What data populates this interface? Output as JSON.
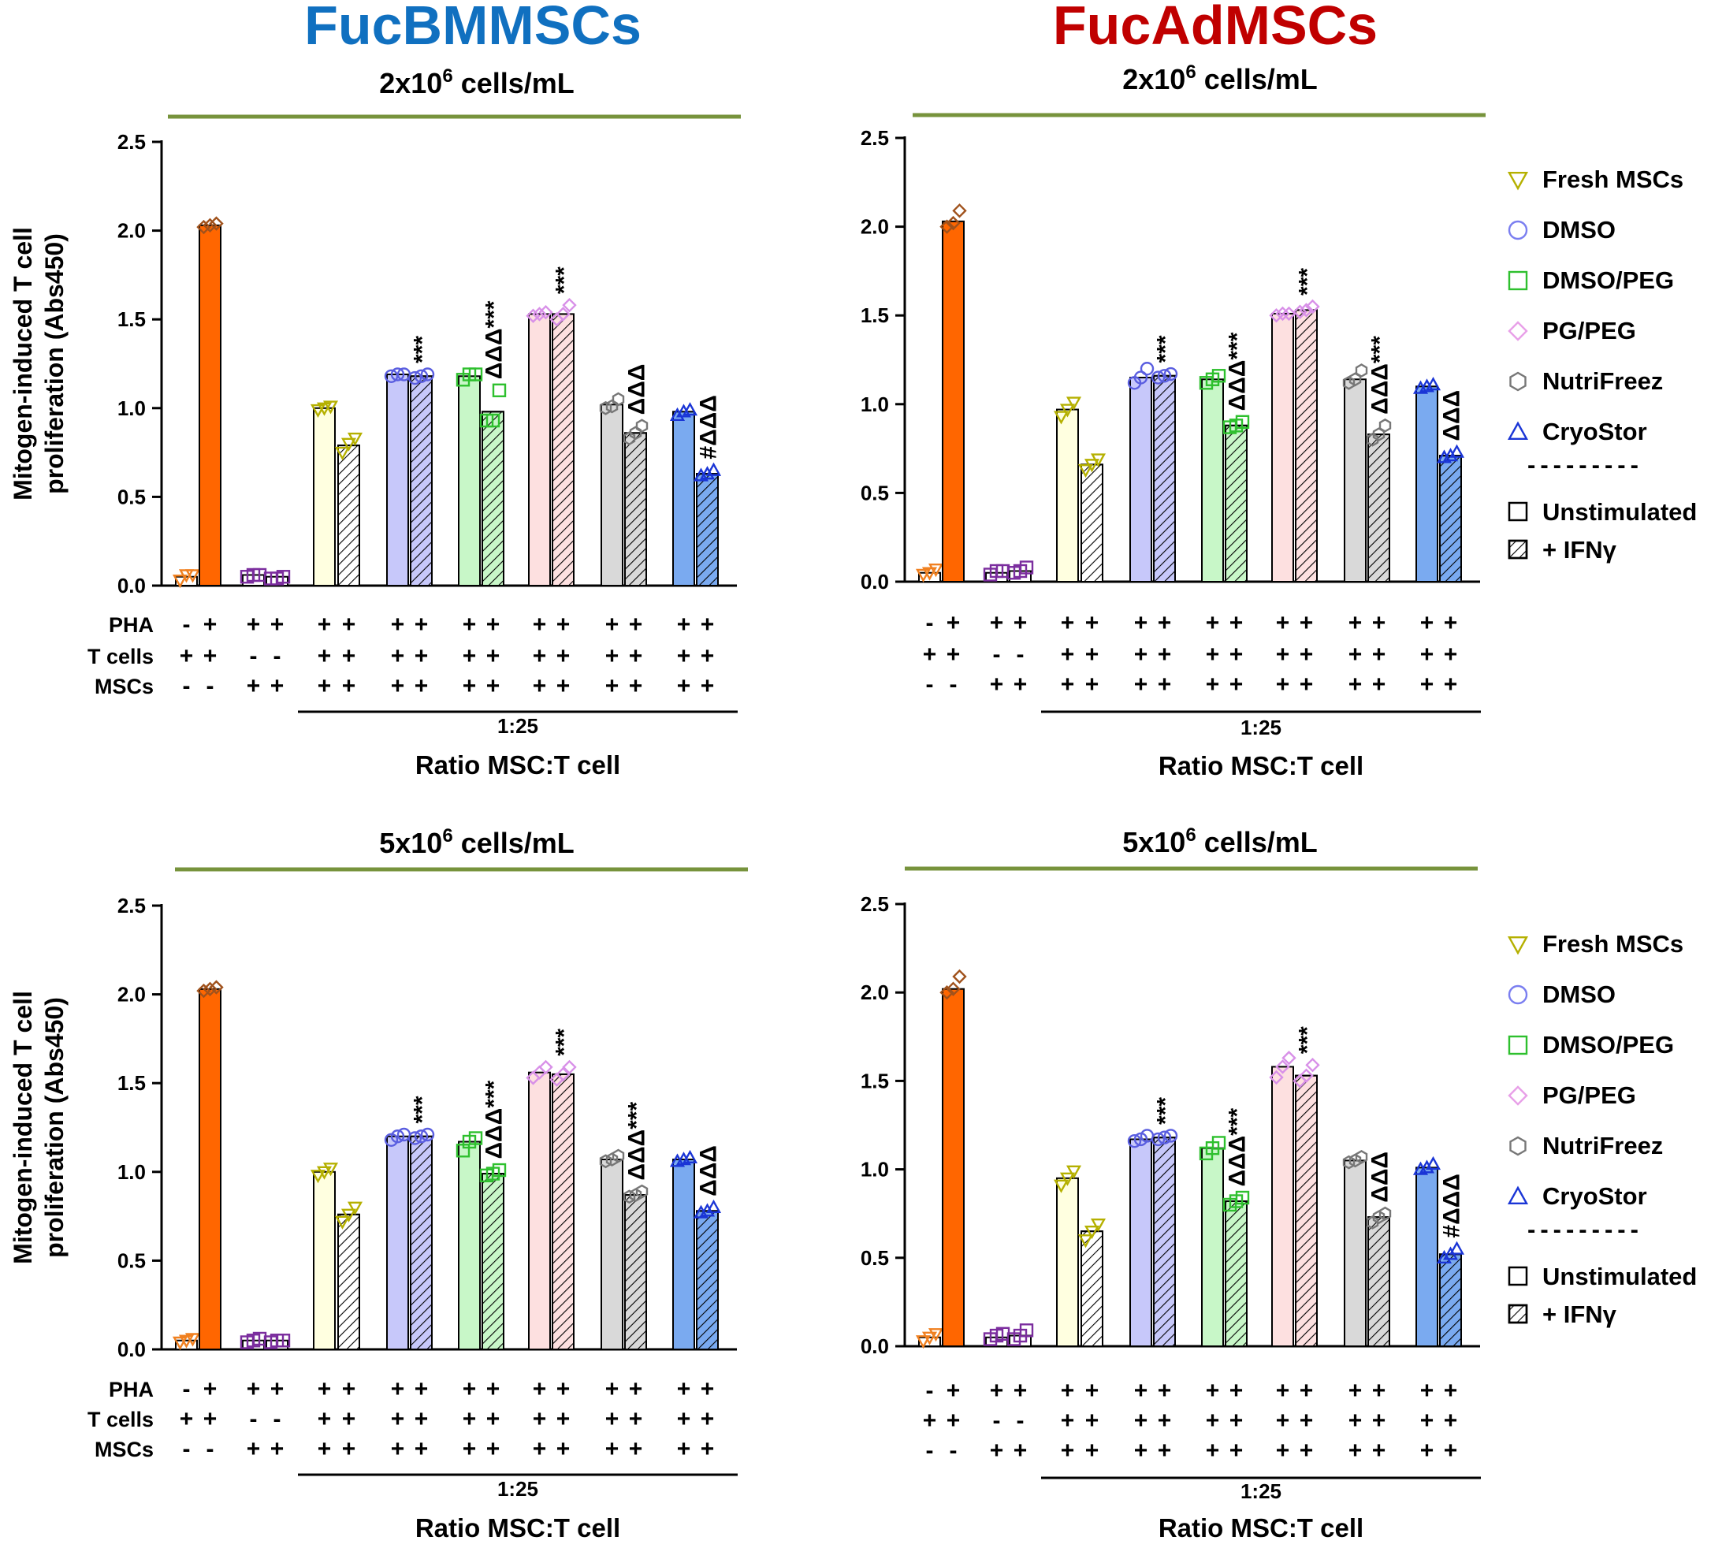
{
  "chart_data": {
    "type": "bar",
    "column_titles": [
      {
        "text": "FucBMMSCs",
        "color": "#1070c0"
      },
      {
        "text": "FucAdMSCs",
        "color": "#c00000"
      }
    ],
    "ylabel_line1": "Mitogen-induced T cell",
    "ylabel_line2": "proliferation (Abs450)",
    "ylim": [
      0,
      2.5
    ],
    "yticks": [
      "0.0",
      "0.5",
      "1.0",
      "1.5",
      "2.0",
      "2.5"
    ],
    "ytick_values": [
      0,
      0.5,
      1.0,
      1.5,
      2.0,
      2.5
    ],
    "row_labels": [
      "PHA",
      "T cells",
      "MSCs"
    ],
    "conditions": {
      "PHA": [
        "-",
        "+",
        "+",
        "+",
        "+",
        "+",
        "+",
        "+",
        "+",
        "+",
        "+",
        "+",
        "+",
        "+",
        "+",
        "+"
      ],
      "T cells": [
        "+",
        "+",
        "-",
        "-",
        "+",
        "+",
        "+",
        "+",
        "+",
        "+",
        "+",
        "+",
        "+",
        "+",
        "+",
        "+"
      ],
      "MSCs": [
        "-",
        "-",
        "+",
        "+",
        "+",
        "+",
        "+",
        "+",
        "+",
        "+",
        "+",
        "+",
        "+",
        "+",
        "+",
        "+"
      ]
    },
    "ratio_label": "1:25",
    "xlabel": "Ratio MSC:T cell",
    "legend": {
      "groups": [
        {
          "label": "Fresh MSCs",
          "marker": "triangle-down",
          "color": "#b5b000"
        },
        {
          "label": "DMSO",
          "marker": "circle",
          "color": "#7a7ef0"
        },
        {
          "label": "DMSO/PEG",
          "marker": "square",
          "color": "#2ec02e"
        },
        {
          "label": "PG/PEG",
          "marker": "diamond",
          "color": "#e8a0e8"
        },
        {
          "label": "NutriFreez",
          "marker": "hexagon",
          "color": "#777777"
        },
        {
          "label": "CryoStor",
          "marker": "triangle-up",
          "color": "#1a35d6"
        }
      ],
      "divider": "---------",
      "styles": [
        {
          "label": "Unstimulated",
          "pattern": "open"
        },
        {
          "label": "+ IFNγ",
          "pattern": "hatched"
        }
      ]
    },
    "bar_styles": [
      {
        "name": "T cells",
        "fill": "#ffffff",
        "stroke": "#000000",
        "marker_color": "#f08020",
        "marker": "triangle-down",
        "hatch": false
      },
      {
        "name": "T cells + PHA",
        "fill": "#ff6600",
        "stroke": "#000000",
        "marker_color": "#a0521c",
        "marker": "diamond",
        "hatch": false
      },
      {
        "name": "MSCs only",
        "fill": "#ffffff",
        "stroke": "#000000",
        "marker_color": "#7b2d9e",
        "marker": "square",
        "hatch": false
      },
      {
        "name": "MSCs only",
        "fill": "#ffffff",
        "stroke": "#000000",
        "marker_color": "#7b2d9e",
        "marker": "square",
        "hatch": false
      },
      {
        "name": "Fresh MSCs",
        "fill": "#ffffe0",
        "stroke": "#000000",
        "marker_color": "#b5b000",
        "marker": "triangle-down",
        "hatch": false
      },
      {
        "name": "Fresh MSCs + IFNγ",
        "fill": "#ffffff",
        "stroke": "#000000",
        "marker_color": "#b5b000",
        "marker": "triangle-down",
        "hatch": true
      },
      {
        "name": "DMSO",
        "fill": "#c7c8fa",
        "stroke": "#000000",
        "marker_color": "#5a5ee0",
        "marker": "circle",
        "hatch": false
      },
      {
        "name": "DMSO + IFNγ",
        "fill": "#c7c8fa",
        "stroke": "#000000",
        "marker_color": "#5a5ee0",
        "marker": "circle",
        "hatch": true
      },
      {
        "name": "DMSO/PEG",
        "fill": "#c8f7c8",
        "stroke": "#000000",
        "marker_color": "#2ec02e",
        "marker": "square",
        "hatch": false
      },
      {
        "name": "DMSO/PEG + IFNγ",
        "fill": "#c8f7c8",
        "stroke": "#000000",
        "marker_color": "#2ec02e",
        "marker": "square",
        "hatch": true
      },
      {
        "name": "PG/PEG",
        "fill": "#fde0e0",
        "stroke": "#000000",
        "marker_color": "#d890e8",
        "marker": "diamond",
        "hatch": false
      },
      {
        "name": "PG/PEG + IFNγ",
        "fill": "#fde0e0",
        "stroke": "#000000",
        "marker_color": "#d890e8",
        "marker": "diamond",
        "hatch": true
      },
      {
        "name": "NutriFreez",
        "fill": "#d9d9d9",
        "stroke": "#000000",
        "marker_color": "#777777",
        "marker": "hexagon",
        "hatch": false
      },
      {
        "name": "NutriFreez + IFNγ",
        "fill": "#d9d9d9",
        "stroke": "#000000",
        "marker_color": "#777777",
        "marker": "hexagon",
        "hatch": true
      },
      {
        "name": "CryoStor",
        "fill": "#7aaaf0",
        "stroke": "#000000",
        "marker_color": "#1a35d6",
        "marker": "triangle-up",
        "hatch": false
      },
      {
        "name": "CryoStor + IFNγ",
        "fill": "#7aaaf0",
        "stroke": "#000000",
        "marker_color": "#1a35d6",
        "marker": "triangle-up",
        "hatch": true
      }
    ],
    "panels": [
      {
        "id": "bm-2",
        "title": "2x10",
        "title_sup": "6",
        "title_tail": " cells/mL",
        "values": [
          0.05,
          2.03,
          0.06,
          0.05,
          1.0,
          0.79,
          1.19,
          1.18,
          1.18,
          0.98,
          1.53,
          1.53,
          1.02,
          0.86,
          0.98,
          0.63
        ],
        "points": [
          [
            0.03,
            0.06,
            0.06
          ],
          [
            2.02,
            2.03,
            2.04
          ],
          [
            0.05,
            0.06,
            0.06
          ],
          [
            0.04,
            0.04,
            0.05
          ],
          [
            0.99,
            1.0,
            1.01
          ],
          [
            0.75,
            0.8,
            0.83
          ],
          [
            1.18,
            1.19,
            1.19
          ],
          [
            1.17,
            1.18,
            1.19
          ],
          [
            1.16,
            1.19,
            1.19
          ],
          [
            0.93,
            0.93,
            1.1
          ],
          [
            1.52,
            1.53,
            1.54
          ],
          [
            1.5,
            1.53,
            1.58
          ],
          [
            1.0,
            1.01,
            1.05
          ],
          [
            0.83,
            0.86,
            0.9
          ],
          [
            0.96,
            0.98,
            0.99
          ],
          [
            0.62,
            0.63,
            0.65
          ]
        ],
        "annotations": [
          "",
          "",
          "",
          "",
          "",
          "",
          "",
          "***",
          "",
          "ΔΔΔ***",
          "",
          "***",
          "",
          "ΔΔΔ",
          "",
          "#ΔΔΔ"
        ]
      },
      {
        "id": "ad-2",
        "title": "2x10",
        "title_sup": "6",
        "title_tail": " cells/mL",
        "values": [
          0.05,
          2.03,
          0.05,
          0.06,
          0.97,
          0.66,
          1.15,
          1.16,
          1.14,
          0.88,
          1.51,
          1.53,
          1.14,
          0.83,
          1.1,
          0.71
        ],
        "points": [
          [
            0.04,
            0.05,
            0.07
          ],
          [
            2.0,
            2.02,
            2.09
          ],
          [
            0.04,
            0.06,
            0.06
          ],
          [
            0.05,
            0.06,
            0.08
          ],
          [
            0.93,
            0.97,
            1.01
          ],
          [
            0.63,
            0.66,
            0.69
          ],
          [
            1.12,
            1.15,
            1.2
          ],
          [
            1.15,
            1.16,
            1.17
          ],
          [
            1.12,
            1.14,
            1.16
          ],
          [
            0.87,
            0.88,
            0.9
          ],
          [
            1.5,
            1.51,
            1.51
          ],
          [
            1.52,
            1.53,
            1.55
          ],
          [
            1.12,
            1.14,
            1.19
          ],
          [
            0.8,
            0.83,
            0.88
          ],
          [
            1.09,
            1.1,
            1.11
          ],
          [
            0.7,
            0.71,
            0.73
          ]
        ],
        "annotations": [
          "",
          "",
          "",
          "",
          "",
          "",
          "",
          "***",
          "",
          "ΔΔΔ***",
          "",
          "***",
          "",
          "ΔΔΔ***",
          "",
          "ΔΔΔ"
        ]
      },
      {
        "id": "bm-5",
        "title": "5x10",
        "title_sup": "6",
        "title_tail": " cells/mL",
        "values": [
          0.05,
          2.03,
          0.05,
          0.05,
          1.0,
          0.76,
          1.2,
          1.2,
          1.17,
          0.99,
          1.56,
          1.55,
          1.07,
          0.87,
          1.07,
          0.78
        ],
        "points": [
          [
            0.04,
            0.05,
            0.06
          ],
          [
            2.02,
            2.03,
            2.04
          ],
          [
            0.04,
            0.05,
            0.06
          ],
          [
            0.04,
            0.05,
            0.05
          ],
          [
            0.98,
            1.0,
            1.02
          ],
          [
            0.72,
            0.76,
            0.8
          ],
          [
            1.18,
            1.2,
            1.21
          ],
          [
            1.19,
            1.2,
            1.21
          ],
          [
            1.12,
            1.17,
            1.19
          ],
          [
            0.98,
            0.99,
            1.01
          ],
          [
            1.53,
            1.56,
            1.59
          ],
          [
            1.52,
            1.55,
            1.59
          ],
          [
            1.06,
            1.07,
            1.09
          ],
          [
            0.86,
            0.87,
            0.89
          ],
          [
            1.06,
            1.07,
            1.08
          ],
          [
            0.77,
            0.78,
            0.8
          ]
        ],
        "annotations": [
          "",
          "",
          "",
          "",
          "",
          "",
          "",
          "***",
          "",
          "ΔΔΔ***",
          "",
          "***",
          "",
          "ΔΔΔ***",
          "",
          "ΔΔΔ"
        ]
      },
      {
        "id": "ad-5",
        "title": "5x10",
        "title_sup": "6",
        "title_tail": " cells/mL",
        "values": [
          0.05,
          2.02,
          0.05,
          0.06,
          0.95,
          0.65,
          1.17,
          1.18,
          1.12,
          0.82,
          1.58,
          1.53,
          1.05,
          0.73,
          1.01,
          0.52
        ],
        "points": [
          [
            0.03,
            0.05,
            0.07
          ],
          [
            2.0,
            2.02,
            2.09
          ],
          [
            0.04,
            0.06,
            0.07
          ],
          [
            0.04,
            0.06,
            0.09
          ],
          [
            0.91,
            0.95,
            0.99
          ],
          [
            0.6,
            0.65,
            0.69
          ],
          [
            1.16,
            1.17,
            1.19
          ],
          [
            1.17,
            1.18,
            1.19
          ],
          [
            1.09,
            1.12,
            1.15
          ],
          [
            0.8,
            0.82,
            0.84
          ],
          [
            1.52,
            1.58,
            1.63
          ],
          [
            1.5,
            1.53,
            1.59
          ],
          [
            1.04,
            1.05,
            1.07
          ],
          [
            0.7,
            0.73,
            0.75
          ],
          [
            1.0,
            1.01,
            1.03
          ],
          [
            0.5,
            0.52,
            0.55
          ]
        ],
        "annotations": [
          "",
          "",
          "",
          "",
          "",
          "",
          "",
          "***",
          "",
          "ΔΔΔ***",
          "",
          "***",
          "",
          "ΔΔΔ",
          "",
          "#ΔΔΔ"
        ]
      }
    ]
  }
}
